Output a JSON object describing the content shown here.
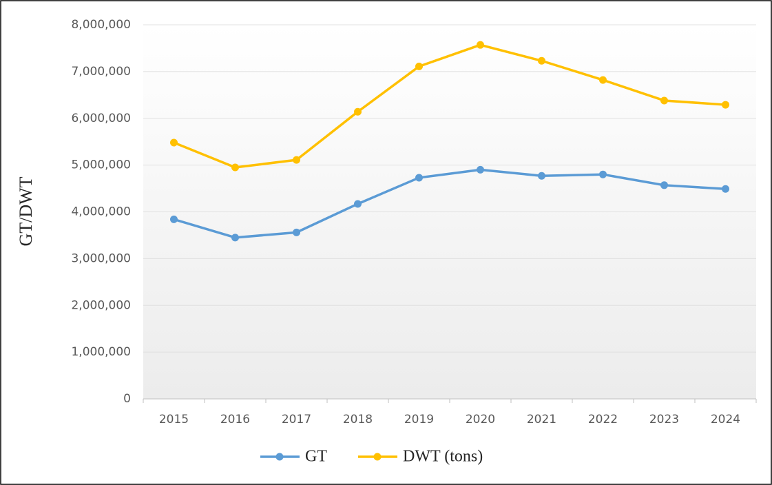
{
  "chart_data": {
    "type": "line",
    "y_label": "GT/DWT",
    "categories": [
      "2015",
      "2016",
      "2017",
      "2018",
      "2019",
      "2020",
      "2021",
      "2022",
      "2023",
      "2024"
    ],
    "series": [
      {
        "name": "GT",
        "color": "#5b9bd5",
        "values": [
          3840000,
          3450000,
          3560000,
          4170000,
          4730000,
          4900000,
          4770000,
          4800000,
          4570000,
          4490000
        ]
      },
      {
        "name": "DWT (tons)",
        "color": "#ffc000",
        "values": [
          5480000,
          4950000,
          5110000,
          6140000,
          7110000,
          7570000,
          7230000,
          6820000,
          6380000,
          6290000
        ]
      }
    ],
    "ylim": [
      0,
      8000000
    ],
    "yticks": [
      0,
      {
        "value": 1000000,
        "label": "1,000,000"
      },
      {
        "value": 2000000,
        "label": "2,000,000"
      },
      {
        "value": 3000000,
        "label": "3,000,000"
      },
      {
        "value": 4000000,
        "label": "4,000,000"
      },
      {
        "value": 5000000,
        "label": "5,000,000"
      },
      {
        "value": 6000000,
        "label": "6,000,000"
      },
      {
        "value": 7000000,
        "label": "7,000,000"
      },
      {
        "value": 8000000,
        "label": "8,000,000"
      }
    ],
    "grid": true,
    "legend": "bottom"
  }
}
